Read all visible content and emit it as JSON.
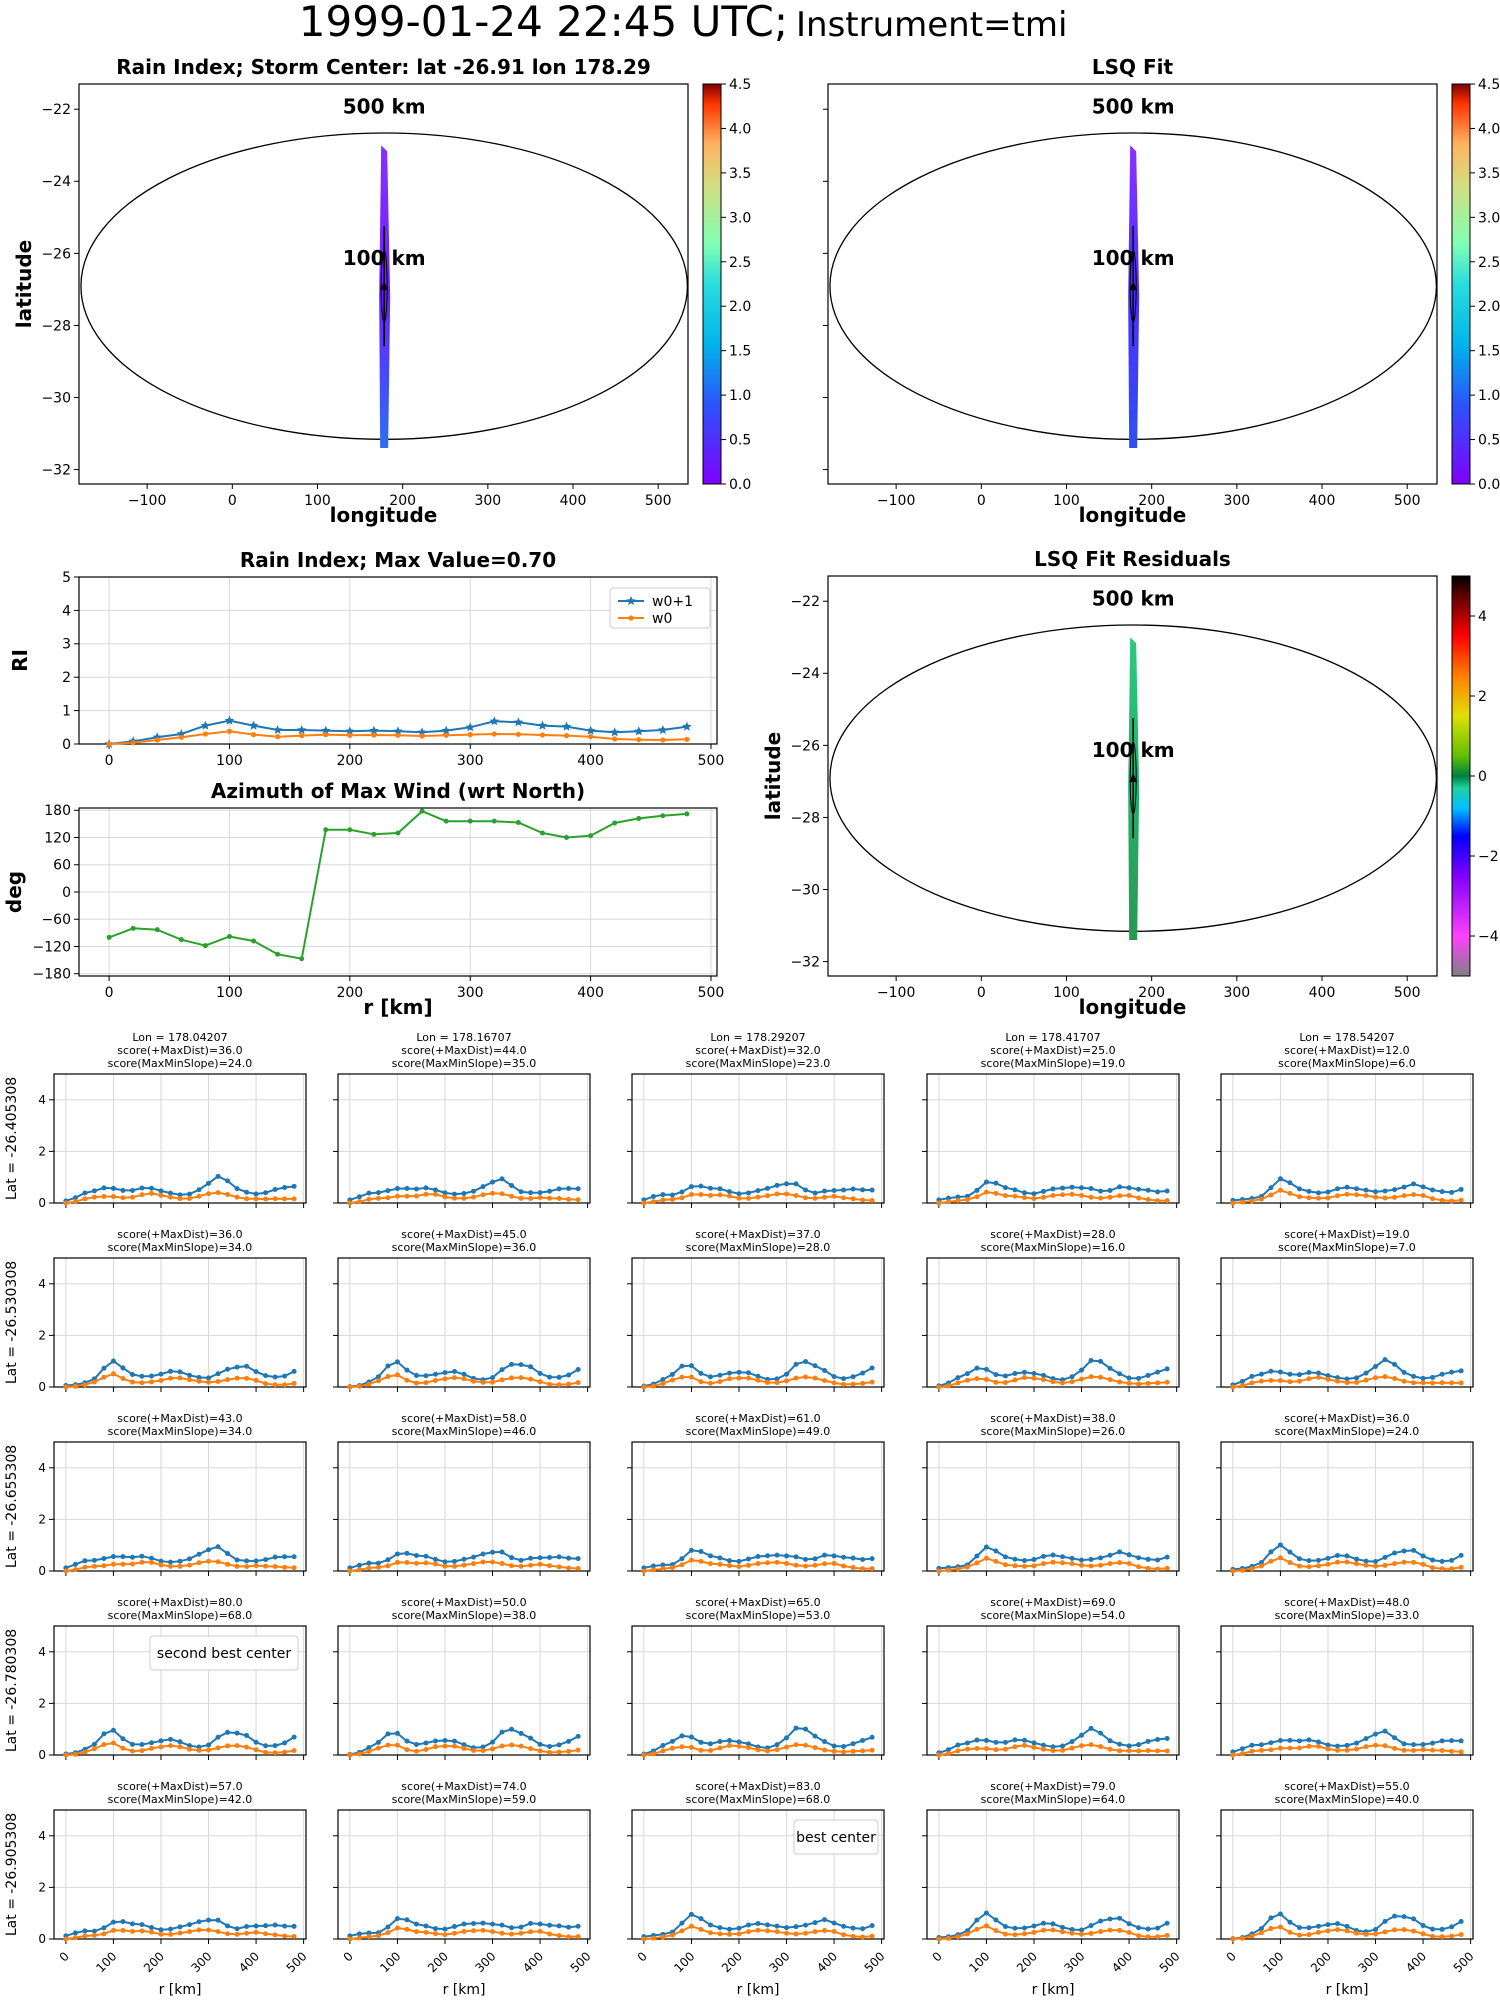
{
  "header": {
    "timestamp": "1999-01-24 22:45 UTC;",
    "instrument": "Instrument=tmi"
  },
  "colors": {
    "w1": "#1f77b4",
    "w0": "#ff7f0e",
    "azimuth": "#2ca02c",
    "best": "#800080",
    "second": "#ff0000"
  },
  "chart_data": [
    {
      "id": "rain-index-map",
      "type": "heatmap",
      "title": "Rain Index; Storm Center: lat -26.91 lon 178.29",
      "xlabel": "longitude",
      "ylabel": "latitude",
      "xlim": [
        -180,
        535
      ],
      "ylim": [
        -32.4,
        -21.3
      ],
      "xticks": [
        -100,
        0,
        100,
        200,
        300,
        400,
        500
      ],
      "yticks": [
        -32,
        -30,
        -28,
        -26,
        -24,
        -22
      ],
      "center": {
        "lon": 178.29,
        "lat": -26.91
      },
      "rings": [
        "500 km",
        "100 km"
      ],
      "ring_500": {
        "rx": 356,
        "ry": 4.25
      },
      "ring_100": {
        "rx": 4.5,
        "ry": 4.0
      },
      "colorbar": {
        "min": 0.0,
        "max": 4.5,
        "colormap": "rainbow",
        "ticks": [
          "0.0",
          "0.5",
          "1.0",
          "1.5",
          "2.0",
          "2.5",
          "3.0",
          "3.5",
          "4.0",
          "4.5"
        ]
      }
    },
    {
      "id": "lsq-fit-map",
      "type": "heatmap",
      "title": "LSQ Fit",
      "xlabel": "longitude",
      "xlim": [
        -180,
        535
      ],
      "ylim": [
        -32.4,
        -21.3
      ],
      "xticks": [
        -100,
        0,
        100,
        200,
        300,
        400,
        500
      ],
      "yticks": [
        -32,
        -30,
        -28,
        -26,
        -24,
        -22
      ],
      "center": {
        "lon": 178.29,
        "lat": -26.91
      },
      "rings": [
        "500 km",
        "100 km"
      ],
      "colorbar": {
        "min": 0.0,
        "max": 4.5,
        "colormap": "rainbow",
        "ticks": [
          "0.0",
          "0.5",
          "1.0",
          "1.5",
          "2.0",
          "2.5",
          "3.0",
          "3.5",
          "4.0",
          "4.5"
        ]
      }
    },
    {
      "id": "rain-index-profile",
      "type": "line",
      "title": "Rain Index; Max Value=0.70",
      "ylabel": "RI",
      "x": [
        0,
        20,
        40,
        60,
        80,
        100,
        120,
        140,
        160,
        180,
        200,
        220,
        240,
        260,
        280,
        300,
        320,
        340,
        360,
        380,
        400,
        420,
        440,
        460,
        480
      ],
      "xlim": [
        -25,
        505
      ],
      "ylim": [
        0,
        5
      ],
      "xticks": [
        0,
        100,
        200,
        300,
        400,
        500
      ],
      "yticks": [
        0,
        1,
        2,
        3,
        4,
        5
      ],
      "legend": "top-right",
      "series": [
        {
          "name": "w0+1",
          "marker": "star",
          "values": [
            0,
            0.08,
            0.2,
            0.3,
            0.55,
            0.7,
            0.55,
            0.42,
            0.42,
            0.4,
            0.38,
            0.4,
            0.38,
            0.35,
            0.4,
            0.5,
            0.68,
            0.65,
            0.55,
            0.52,
            0.4,
            0.35,
            0.38,
            0.42,
            0.52
          ]
        },
        {
          "name": "w0",
          "marker": "dot",
          "values": [
            0,
            0.04,
            0.12,
            0.2,
            0.3,
            0.38,
            0.28,
            0.22,
            0.25,
            0.28,
            0.26,
            0.27,
            0.26,
            0.24,
            0.26,
            0.28,
            0.3,
            0.29,
            0.27,
            0.25,
            0.22,
            0.15,
            0.13,
            0.12,
            0.14
          ]
        }
      ]
    },
    {
      "id": "azimuth-profile",
      "type": "line",
      "title": "Azimuth of Max Wind (wrt North)",
      "xlabel": "r [km]",
      "ylabel": "deg",
      "x": [
        0,
        20,
        40,
        60,
        80,
        100,
        120,
        140,
        160,
        180,
        200,
        220,
        240,
        260,
        280,
        300,
        320,
        340,
        360,
        380,
        400,
        420,
        440,
        460,
        480
      ],
      "xlim": [
        -25,
        505
      ],
      "ylim": [
        -185,
        185
      ],
      "xticks": [
        0,
        100,
        200,
        300,
        400,
        500
      ],
      "yticks": [
        -180,
        -120,
        -60,
        0,
        60,
        120,
        180
      ],
      "series": [
        {
          "values": [
            -100,
            -80,
            -83,
            -105,
            -118,
            -98,
            -108,
            -137,
            -147,
            137,
            137,
            127,
            130,
            178,
            156,
            156,
            156,
            153,
            130,
            120,
            124,
            152,
            162,
            168,
            172
          ]
        }
      ]
    },
    {
      "id": "lsq-fit-residuals-map",
      "type": "heatmap",
      "title": "LSQ Fit Residuals",
      "xlabel": "longitude",
      "ylabel": "latitude",
      "xlim": [
        -180,
        535
      ],
      "ylim": [
        -32.4,
        -21.3
      ],
      "xticks": [
        -100,
        0,
        100,
        200,
        300,
        400,
        500
      ],
      "yticks": [
        -32,
        -30,
        -28,
        -26,
        -24,
        -22
      ],
      "center": {
        "lon": 178.29,
        "lat": -26.91
      },
      "rings": [
        "500 km",
        "100 km"
      ],
      "colorbar": {
        "min": -5,
        "max": 5,
        "colormap": "residual",
        "ticks": [
          "−4",
          "−2",
          "0",
          "2",
          "4"
        ]
      }
    },
    {
      "id": "candidate-grid",
      "type": "line",
      "xlabel": "r [km]",
      "xticks": [
        0,
        100,
        200,
        300,
        400,
        500
      ],
      "yticks": [
        0,
        2,
        4
      ],
      "ylim": [
        0,
        5
      ],
      "lon_labels": [
        "Lon = 178.04207",
        "Lon = 178.16707",
        "Lon = 178.29207",
        "Lon = 178.41707",
        "Lon = 178.54207"
      ],
      "lat_labels": [
        "Lat = -26.405308",
        "Lat = -26.530308",
        "Lat = -26.655308",
        "Lat = -26.780308",
        "Lat = -26.905308"
      ],
      "scores": [
        [
          [
            "36.0",
            "24.0"
          ],
          [
            "44.0",
            "35.0"
          ],
          [
            "32.0",
            "23.0"
          ],
          [
            "25.0",
            "19.0"
          ],
          [
            "12.0",
            "6.0"
          ]
        ],
        [
          [
            "36.0",
            "34.0"
          ],
          [
            "45.0",
            "36.0"
          ],
          [
            "37.0",
            "28.0"
          ],
          [
            "28.0",
            "16.0"
          ],
          [
            "19.0",
            "7.0"
          ]
        ],
        [
          [
            "43.0",
            "34.0"
          ],
          [
            "58.0",
            "46.0"
          ],
          [
            "61.0",
            "49.0"
          ],
          [
            "38.0",
            "26.0"
          ],
          [
            "36.0",
            "24.0"
          ]
        ],
        [
          [
            "80.0",
            "68.0"
          ],
          [
            "50.0",
            "38.0"
          ],
          [
            "65.0",
            "53.0"
          ],
          [
            "69.0",
            "54.0"
          ],
          [
            "48.0",
            "33.0"
          ]
        ],
        [
          [
            "57.0",
            "42.0"
          ],
          [
            "74.0",
            "59.0"
          ],
          [
            "83.0",
            "68.0"
          ],
          [
            "79.0",
            "64.0"
          ],
          [
            "55.0",
            "40.0"
          ]
        ]
      ],
      "score_label_a": "score(+MaxDist)=",
      "score_label_b": "score(MaxMinSlope)=",
      "second_best": {
        "row": 3,
        "col": 0,
        "label": "second best center"
      },
      "best": {
        "row": 4,
        "col": 2,
        "label": "best center"
      }
    }
  ]
}
